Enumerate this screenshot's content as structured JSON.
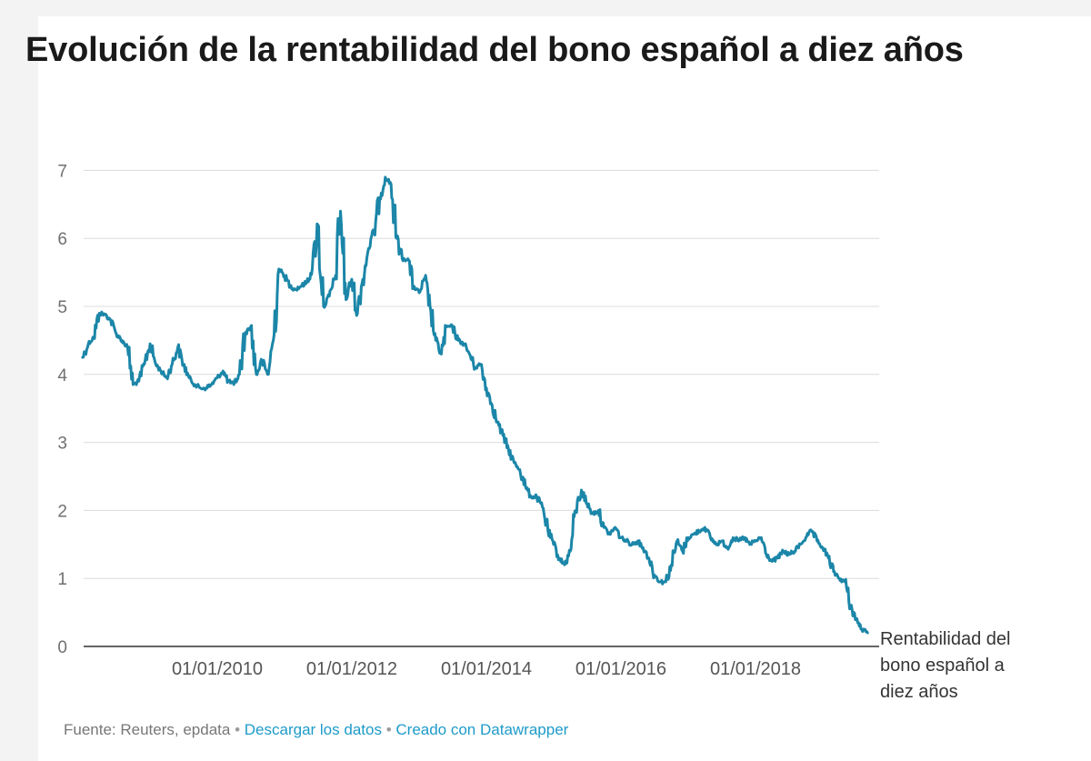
{
  "title": "Evolución de la rentabilidad del bono español a diez años",
  "footer": {
    "source": "Fuente: Reuters, epdata",
    "separator": "•",
    "download_link": "Descargar los datos",
    "created_link": "Creado con Datawrapper"
  },
  "colors": {
    "line": "#1b86a8",
    "grid": "#dcdcdc",
    "baseline": "#333333"
  },
  "chart_data": {
    "type": "line",
    "title": "Evolución de la rentabilidad del bono español a diez años",
    "xlabel": "",
    "ylabel": "",
    "x_type": "date",
    "xlim": [
      "2008-01-01",
      "2019-09-01"
    ],
    "ylim": [
      0,
      7.7
    ],
    "y_ticks": [
      0,
      1,
      2,
      3,
      4,
      5,
      6,
      7
    ],
    "x_ticks": [
      "2010-01-01",
      "2012-01-01",
      "2014-01-01",
      "2016-01-01",
      "2018-01-01"
    ],
    "x_tick_labels": [
      "01/01/2010",
      "01/01/2012",
      "01/01/2014",
      "01/01/2016",
      "01/01/2018"
    ],
    "grid": true,
    "legend": "end-of-line label",
    "series": [
      {
        "name": "Rentabilidad del bono español a diez años",
        "x": [
          "2008-01-01",
          "2008-02-01",
          "2008-03-01",
          "2008-04-01",
          "2008-05-01",
          "2008-06-01",
          "2008-07-01",
          "2008-08-01",
          "2008-09-01",
          "2008-10-01",
          "2008-11-01",
          "2008-12-01",
          "2009-01-01",
          "2009-02-01",
          "2009-03-01",
          "2009-04-01",
          "2009-05-01",
          "2009-06-01",
          "2009-07-01",
          "2009-08-01",
          "2009-09-01",
          "2009-10-01",
          "2009-11-01",
          "2009-12-01",
          "2010-01-01",
          "2010-02-01",
          "2010-03-01",
          "2010-04-01",
          "2010-05-01",
          "2010-06-01",
          "2010-07-01",
          "2010-08-01",
          "2010-09-01",
          "2010-10-01",
          "2010-11-01",
          "2010-12-01",
          "2011-01-01",
          "2011-02-01",
          "2011-03-01",
          "2011-04-01",
          "2011-05-01",
          "2011-06-01",
          "2011-07-01",
          "2011-08-01",
          "2011-09-01",
          "2011-10-01",
          "2011-11-01",
          "2011-12-01",
          "2012-01-01",
          "2012-02-01",
          "2012-03-01",
          "2012-04-01",
          "2012-05-01",
          "2012-06-01",
          "2012-07-01",
          "2012-08-01",
          "2012-09-01",
          "2012-10-01",
          "2012-11-01",
          "2012-12-01",
          "2013-01-01",
          "2013-02-01",
          "2013-03-01",
          "2013-04-01",
          "2013-05-01",
          "2013-06-01",
          "2013-07-01",
          "2013-08-01",
          "2013-09-01",
          "2013-10-01",
          "2013-11-01",
          "2013-12-01",
          "2014-01-01",
          "2014-02-01",
          "2014-03-01",
          "2014-04-01",
          "2014-05-01",
          "2014-06-01",
          "2014-07-01",
          "2014-08-01",
          "2014-09-01",
          "2014-10-01",
          "2014-11-01",
          "2014-12-01",
          "2015-01-01",
          "2015-02-01",
          "2015-03-01",
          "2015-04-01",
          "2015-05-01",
          "2015-06-01",
          "2015-07-01",
          "2015-08-01",
          "2015-09-01",
          "2015-10-01",
          "2015-11-01",
          "2015-12-01",
          "2016-01-01",
          "2016-02-01",
          "2016-03-01",
          "2016-04-01",
          "2016-05-01",
          "2016-06-01",
          "2016-07-01",
          "2016-08-01",
          "2016-09-01",
          "2016-10-01",
          "2016-11-01",
          "2016-12-01",
          "2017-01-01",
          "2017-02-01",
          "2017-03-01",
          "2017-04-01",
          "2017-05-01",
          "2017-06-01",
          "2017-07-01",
          "2017-08-01",
          "2017-09-01",
          "2017-10-01",
          "2017-11-01",
          "2017-12-01",
          "2018-01-01",
          "2018-02-01",
          "2018-03-01",
          "2018-04-01",
          "2018-05-01",
          "2018-06-01",
          "2018-07-01",
          "2018-08-01",
          "2018-09-01",
          "2018-10-01",
          "2018-11-01",
          "2018-12-01",
          "2019-01-01",
          "2019-02-01",
          "2019-03-01",
          "2019-04-01",
          "2019-05-01",
          "2019-06-01",
          "2019-07-01",
          "2019-08-01",
          "2019-09-01"
        ],
        "y": [
          4.25,
          4.45,
          4.55,
          4.9,
          4.88,
          4.8,
          4.6,
          4.5,
          4.4,
          3.85,
          3.9,
          4.15,
          4.45,
          4.15,
          4.05,
          3.95,
          4.15,
          4.4,
          4.15,
          3.95,
          3.85,
          3.8,
          3.8,
          3.85,
          3.95,
          4.05,
          3.9,
          3.85,
          4.0,
          4.6,
          4.7,
          4.0,
          4.2,
          4.0,
          4.5,
          5.55,
          5.45,
          5.3,
          5.25,
          5.3,
          5.35,
          5.55,
          6.2,
          5.0,
          5.15,
          5.4,
          6.4,
          5.1,
          5.4,
          4.9,
          5.4,
          5.85,
          6.1,
          6.6,
          6.9,
          6.8,
          6.0,
          5.7,
          5.7,
          5.3,
          5.2,
          5.4,
          5.0,
          4.5,
          4.3,
          4.7,
          4.7,
          4.5,
          4.45,
          4.3,
          4.1,
          4.15,
          3.8,
          3.55,
          3.3,
          3.1,
          2.9,
          2.7,
          2.6,
          2.35,
          2.2,
          2.2,
          2.05,
          1.7,
          1.5,
          1.3,
          1.2,
          1.4,
          2.0,
          2.3,
          2.1,
          1.95,
          2.0,
          1.75,
          1.65,
          1.75,
          1.6,
          1.55,
          1.5,
          1.55,
          1.45,
          1.3,
          1.05,
          0.95,
          0.95,
          1.2,
          1.55,
          1.4,
          1.6,
          1.65,
          1.7,
          1.75,
          1.6,
          1.5,
          1.55,
          1.45,
          1.6,
          1.55,
          1.6,
          1.5,
          1.55,
          1.6,
          1.35,
          1.25,
          1.3,
          1.4,
          1.35,
          1.4,
          1.5,
          1.6,
          1.7,
          1.55,
          1.45,
          1.3,
          1.1,
          1.0,
          0.95,
          0.6,
          0.4,
          0.25,
          0.2
        ]
      }
    ]
  }
}
